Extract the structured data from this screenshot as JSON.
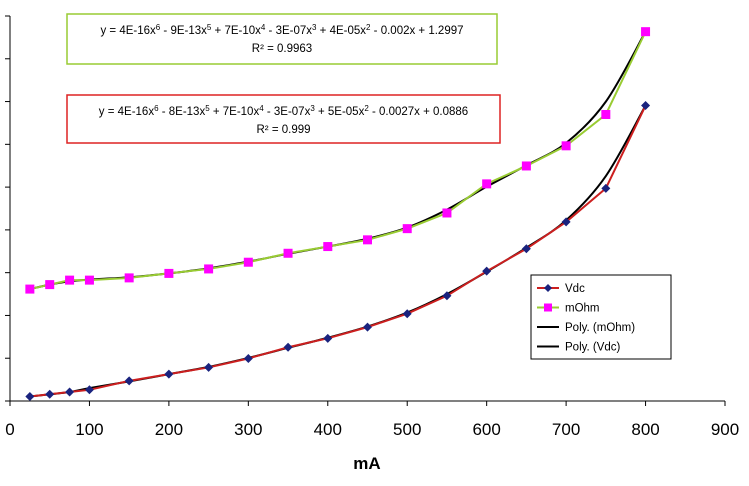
{
  "chart_data": {
    "type": "line",
    "xlabel": "mA",
    "ylabel": "",
    "xlim": [
      0,
      900
    ],
    "xticks": [
      "0",
      "100",
      "200",
      "300",
      "400",
      "500",
      "600",
      "700",
      "800",
      "900"
    ],
    "y_tick_count": 10,
    "grid": false,
    "legend_position": "bottom-right",
    "series": [
      {
        "name": "Vdc",
        "color": "#cc1f1f",
        "marker": "diamond",
        "marker_color": "#1a237e",
        "x": [
          25,
          50,
          75,
          100,
          150,
          200,
          250,
          300,
          350,
          400,
          450,
          500,
          550,
          600,
          650,
          700,
          750,
          800
        ],
        "y": [
          0.02,
          0.03,
          0.04,
          0.05,
          0.09,
          0.12,
          0.15,
          0.19,
          0.24,
          0.28,
          0.33,
          0.39,
          0.47,
          0.58,
          0.68,
          0.8,
          0.95,
          1.32
        ]
      },
      {
        "name": "mOhm",
        "color": "#99cc33",
        "marker": "square",
        "marker_color": "#ff00ff",
        "x": [
          25,
          50,
          75,
          100,
          150,
          200,
          250,
          300,
          350,
          400,
          450,
          500,
          550,
          600,
          650,
          700,
          750,
          800
        ],
        "y": [
          0.5,
          0.52,
          0.54,
          0.54,
          0.55,
          0.57,
          0.59,
          0.62,
          0.66,
          0.69,
          0.72,
          0.77,
          0.84,
          0.97,
          1.05,
          1.14,
          1.28,
          1.65
        ]
      },
      {
        "name": "Poly. (mOhm)",
        "color": "#000000",
        "marker": "none",
        "fit_of": "mOhm"
      },
      {
        "name": "Poly. (Vdc)",
        "color": "#000000",
        "marker": "none",
        "fit_of": "Vdc"
      }
    ],
    "annotations": [
      {
        "id": "mohm-fit",
        "border_color": "#99cc33",
        "equation": [
          "y = 4E-16x",
          "6",
          " - 9E-13x",
          "5",
          " + 7E-10x",
          "4",
          " - 3E-07x",
          "3",
          " + 4E-05x",
          "2",
          " - 0.002x + 1.2997"
        ],
        "r2": "R² = 0.9963"
      },
      {
        "id": "vdc-fit",
        "border_color": "#dd2222",
        "equation": [
          "y = 4E-16x",
          "6",
          " - 8E-13x",
          "5",
          " + 7E-10x",
          "4",
          " - 3E-07x",
          "3",
          " + 5E-05x",
          "2",
          " - 0.0027x + 0.0886"
        ],
        "r2": "R² = 0.999"
      }
    ]
  }
}
